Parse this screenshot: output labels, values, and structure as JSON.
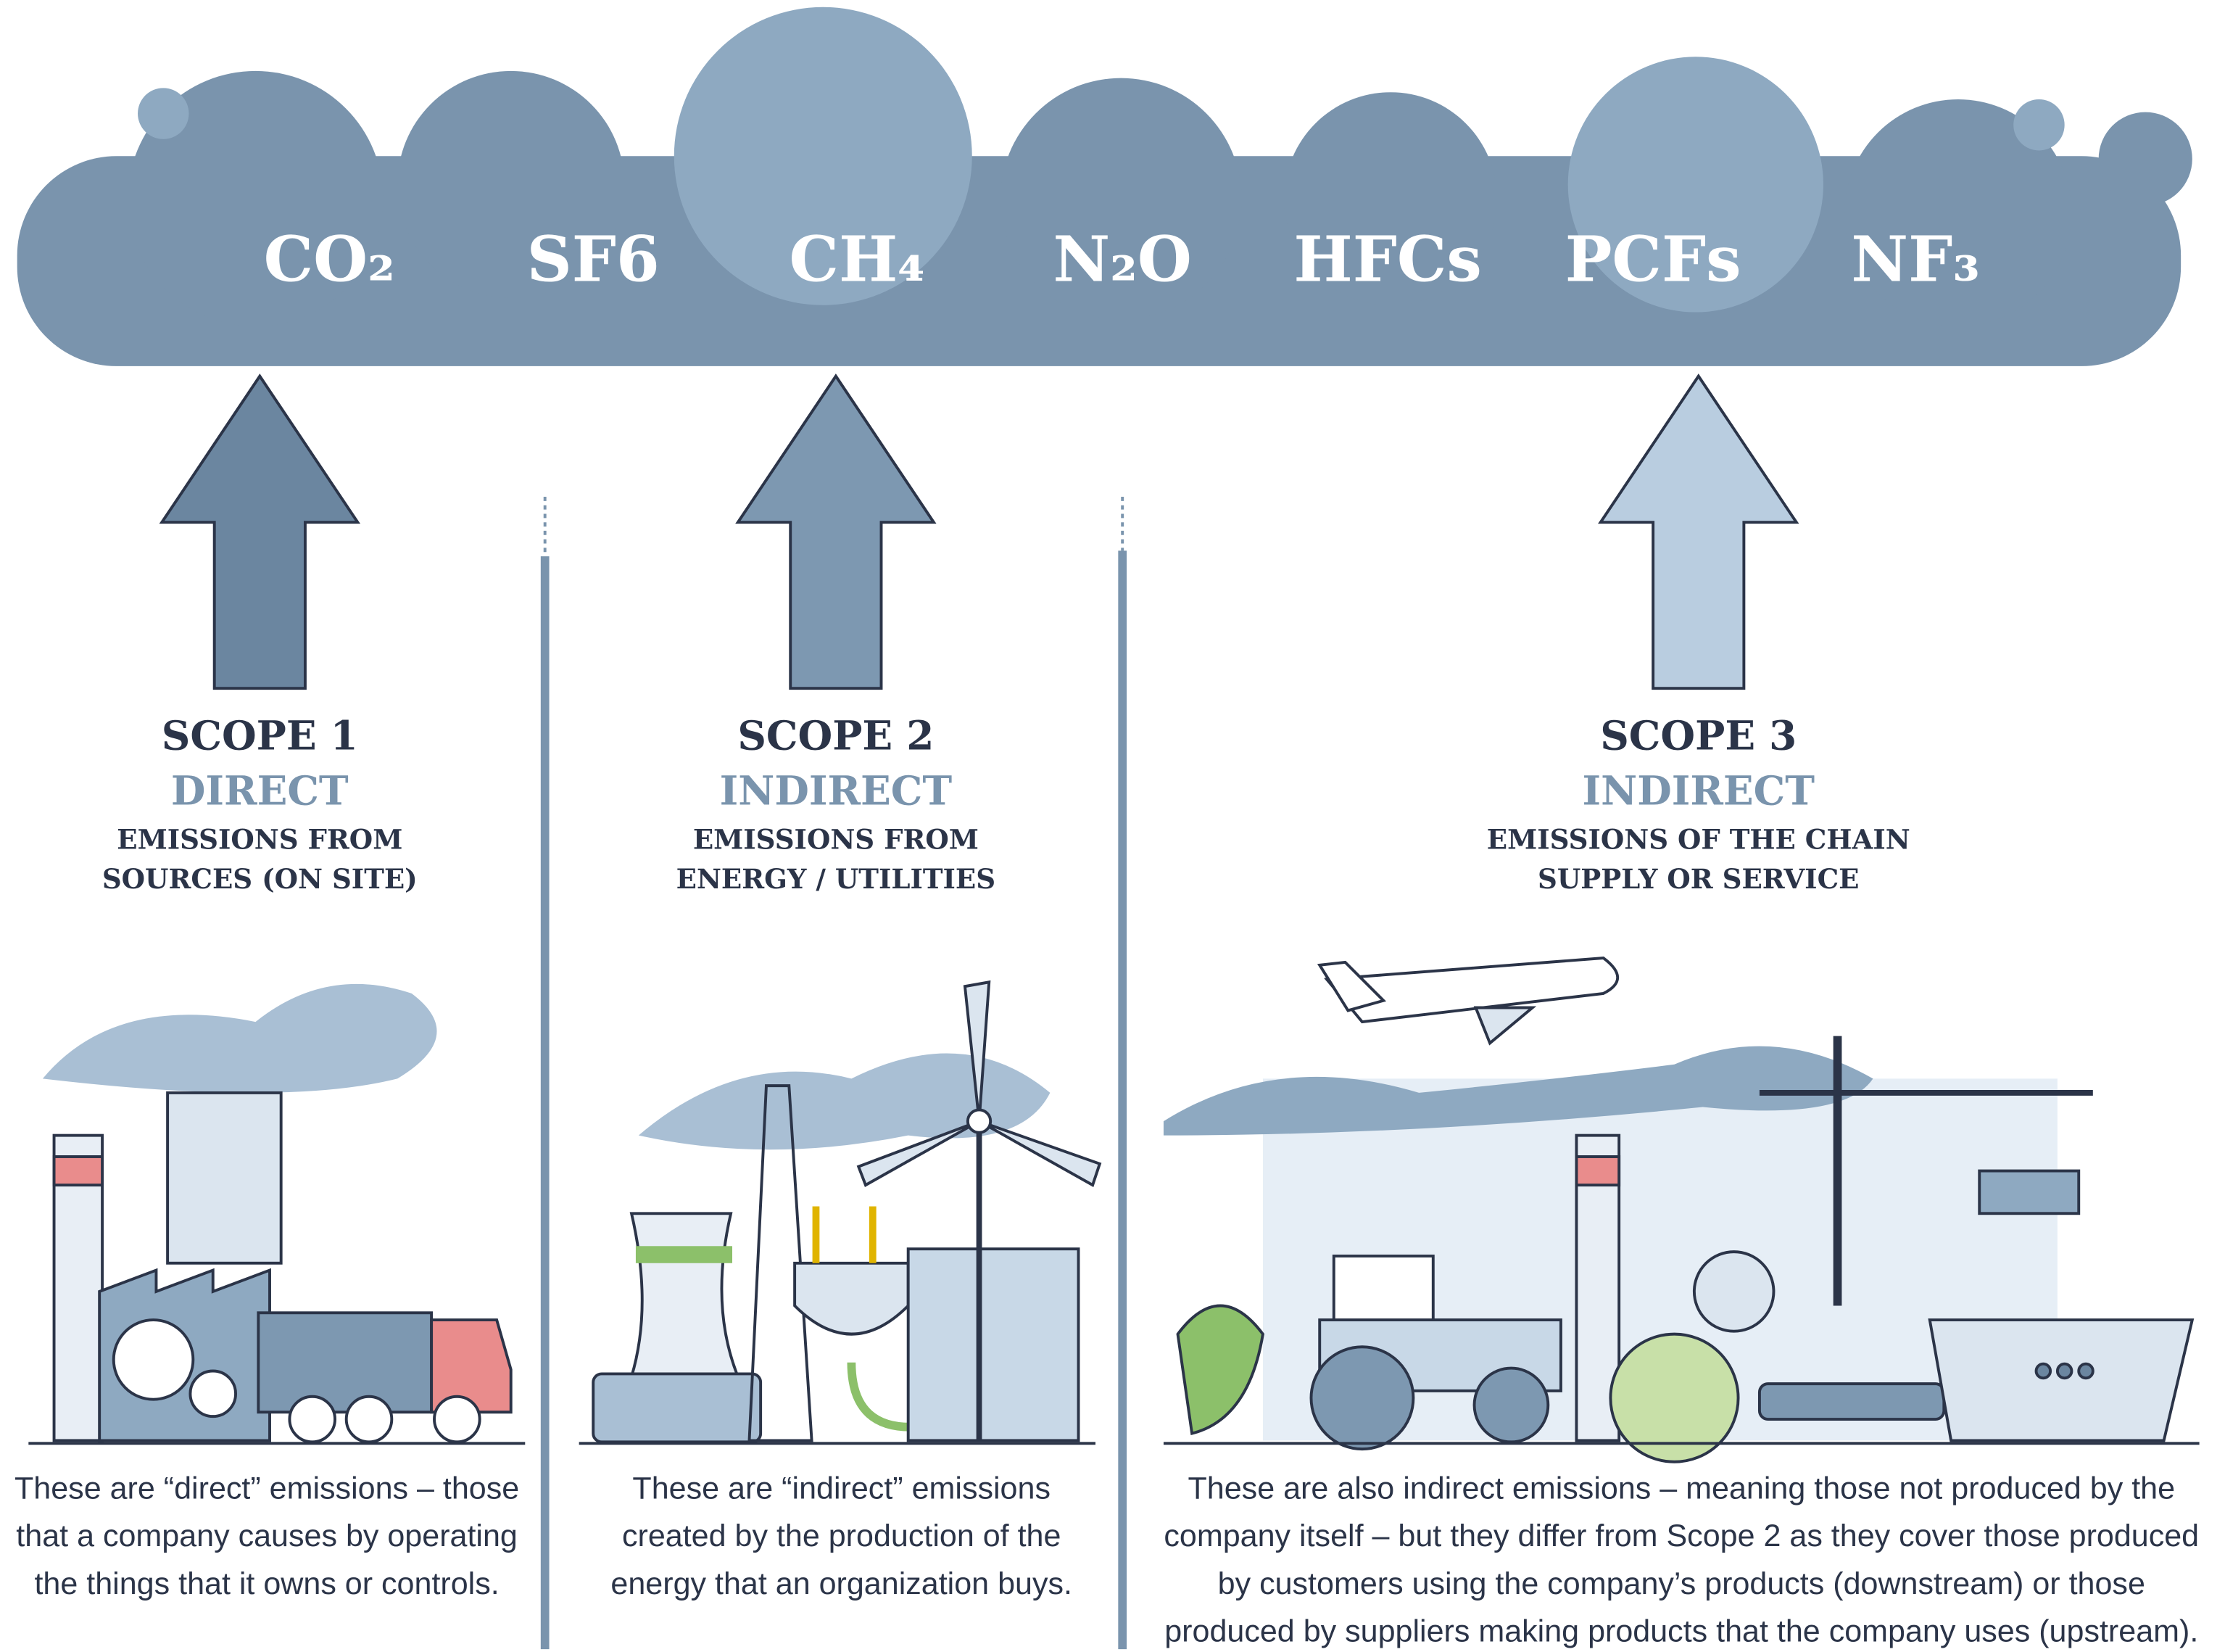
{
  "gases": [
    "CO₂",
    "SF6",
    "CH₄",
    "N₂O",
    "HFCs",
    "PCFs",
    "NF₃"
  ],
  "scopes": [
    {
      "title": "SCOPE 1",
      "type": "DIRECT",
      "subtitle": [
        "EMISSIONS FROM",
        "SOURCES (ON SITE)"
      ],
      "description": [
        "These are “direct” emissions – those",
        "that a company causes by operating",
        "the things that it owns or controls."
      ]
    },
    {
      "title": "SCOPE 2",
      "type": "INDIRECT",
      "subtitle": [
        "EMISSIONS FROM",
        "ENERGY / UTILITIES"
      ],
      "description": [
        "These are “indirect” emissions",
        "created by the production of the",
        "energy that an organization buys."
      ]
    },
    {
      "title": "SCOPE 3",
      "type": "INDIRECT",
      "subtitle": [
        "EMISSIONS OF THE CHAIN",
        "SUPPLY OR SERVICE"
      ],
      "description": [
        "These are also indirect emissions – meaning those not produced by the",
        "company itself – but they differ from Scope 2 as they cover those produced",
        "by customers using the company’s products (downstream) or those",
        "produced by suppliers making products that the company uses (upstream)."
      ]
    }
  ]
}
